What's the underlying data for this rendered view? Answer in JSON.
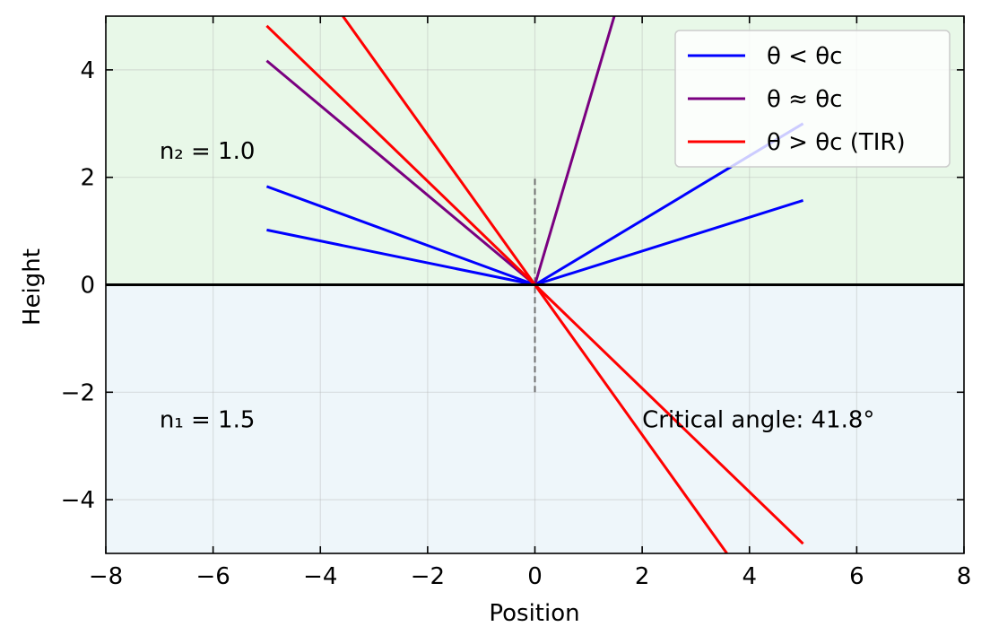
{
  "chart_data": {
    "type": "line",
    "xlabel": "Position",
    "ylabel": "Height",
    "xlim": [
      -8,
      8
    ],
    "ylim": [
      -5,
      5
    ],
    "xticks": [
      -8,
      -6,
      -4,
      -2,
      0,
      2,
      4,
      6,
      8
    ],
    "yticks": [
      -4,
      -2,
      0,
      2,
      4
    ],
    "grid": true,
    "legend_position": "top-right",
    "regions": [
      {
        "y_range": [
          0,
          5
        ],
        "color": "#e8f8e8"
      },
      {
        "y_range": [
          -5,
          0
        ],
        "color": "#eef6fa"
      }
    ],
    "interface": {
      "y": 0,
      "color": "#000000"
    },
    "normal_line": {
      "x": 0,
      "y_range": [
        -2,
        2
      ],
      "color": "#707070"
    },
    "annotations": [
      {
        "text": "n₂ = 1.0",
        "x": -7,
        "y": 2.5
      },
      {
        "text": "n₁ = 1.5",
        "x": -7,
        "y": -2.5
      },
      {
        "text": "Critical angle: 41.8°",
        "x": 2,
        "y": -2.5
      }
    ],
    "legend": [
      {
        "label": "θ < θc",
        "color": "#0000ff"
      },
      {
        "label": "θ ≈ θc",
        "color": "#7a0080"
      },
      {
        "label": "θ > θc (TIR)",
        "color": "#ff0000"
      }
    ],
    "series": [
      {
        "group": "blue",
        "color": "#0000ff",
        "x": [
          -5,
          0
        ],
        "y": [
          1.02,
          0
        ]
      },
      {
        "group": "blue",
        "color": "#0000ff",
        "x": [
          0,
          5
        ],
        "y": [
          0,
          1.57
        ]
      },
      {
        "group": "blue",
        "color": "#0000ff",
        "x": [
          -5,
          0
        ],
        "y": [
          1.83,
          0
        ]
      },
      {
        "group": "blue",
        "color": "#0000ff",
        "x": [
          0,
          5
        ],
        "y": [
          0,
          3.0
        ]
      },
      {
        "group": "purple",
        "color": "#7a0080",
        "x": [
          -5,
          0
        ],
        "y": [
          4.17,
          0
        ]
      },
      {
        "group": "purple",
        "color": "#7a0080",
        "x": [
          0,
          1.48
        ],
        "y": [
          0,
          5
        ]
      },
      {
        "group": "red",
        "color": "#ff0000",
        "x": [
          -5,
          0
        ],
        "y": [
          4.82,
          0
        ]
      },
      {
        "group": "red",
        "color": "#ff0000",
        "x": [
          0,
          5
        ],
        "y": [
          0,
          -4.82
        ]
      },
      {
        "group": "red",
        "color": "#ff0000",
        "x": [
          -3.58,
          0
        ],
        "y": [
          5,
          0
        ]
      },
      {
        "group": "red",
        "color": "#ff0000",
        "x": [
          0,
          3.58
        ],
        "y": [
          0,
          -5
        ]
      }
    ]
  }
}
